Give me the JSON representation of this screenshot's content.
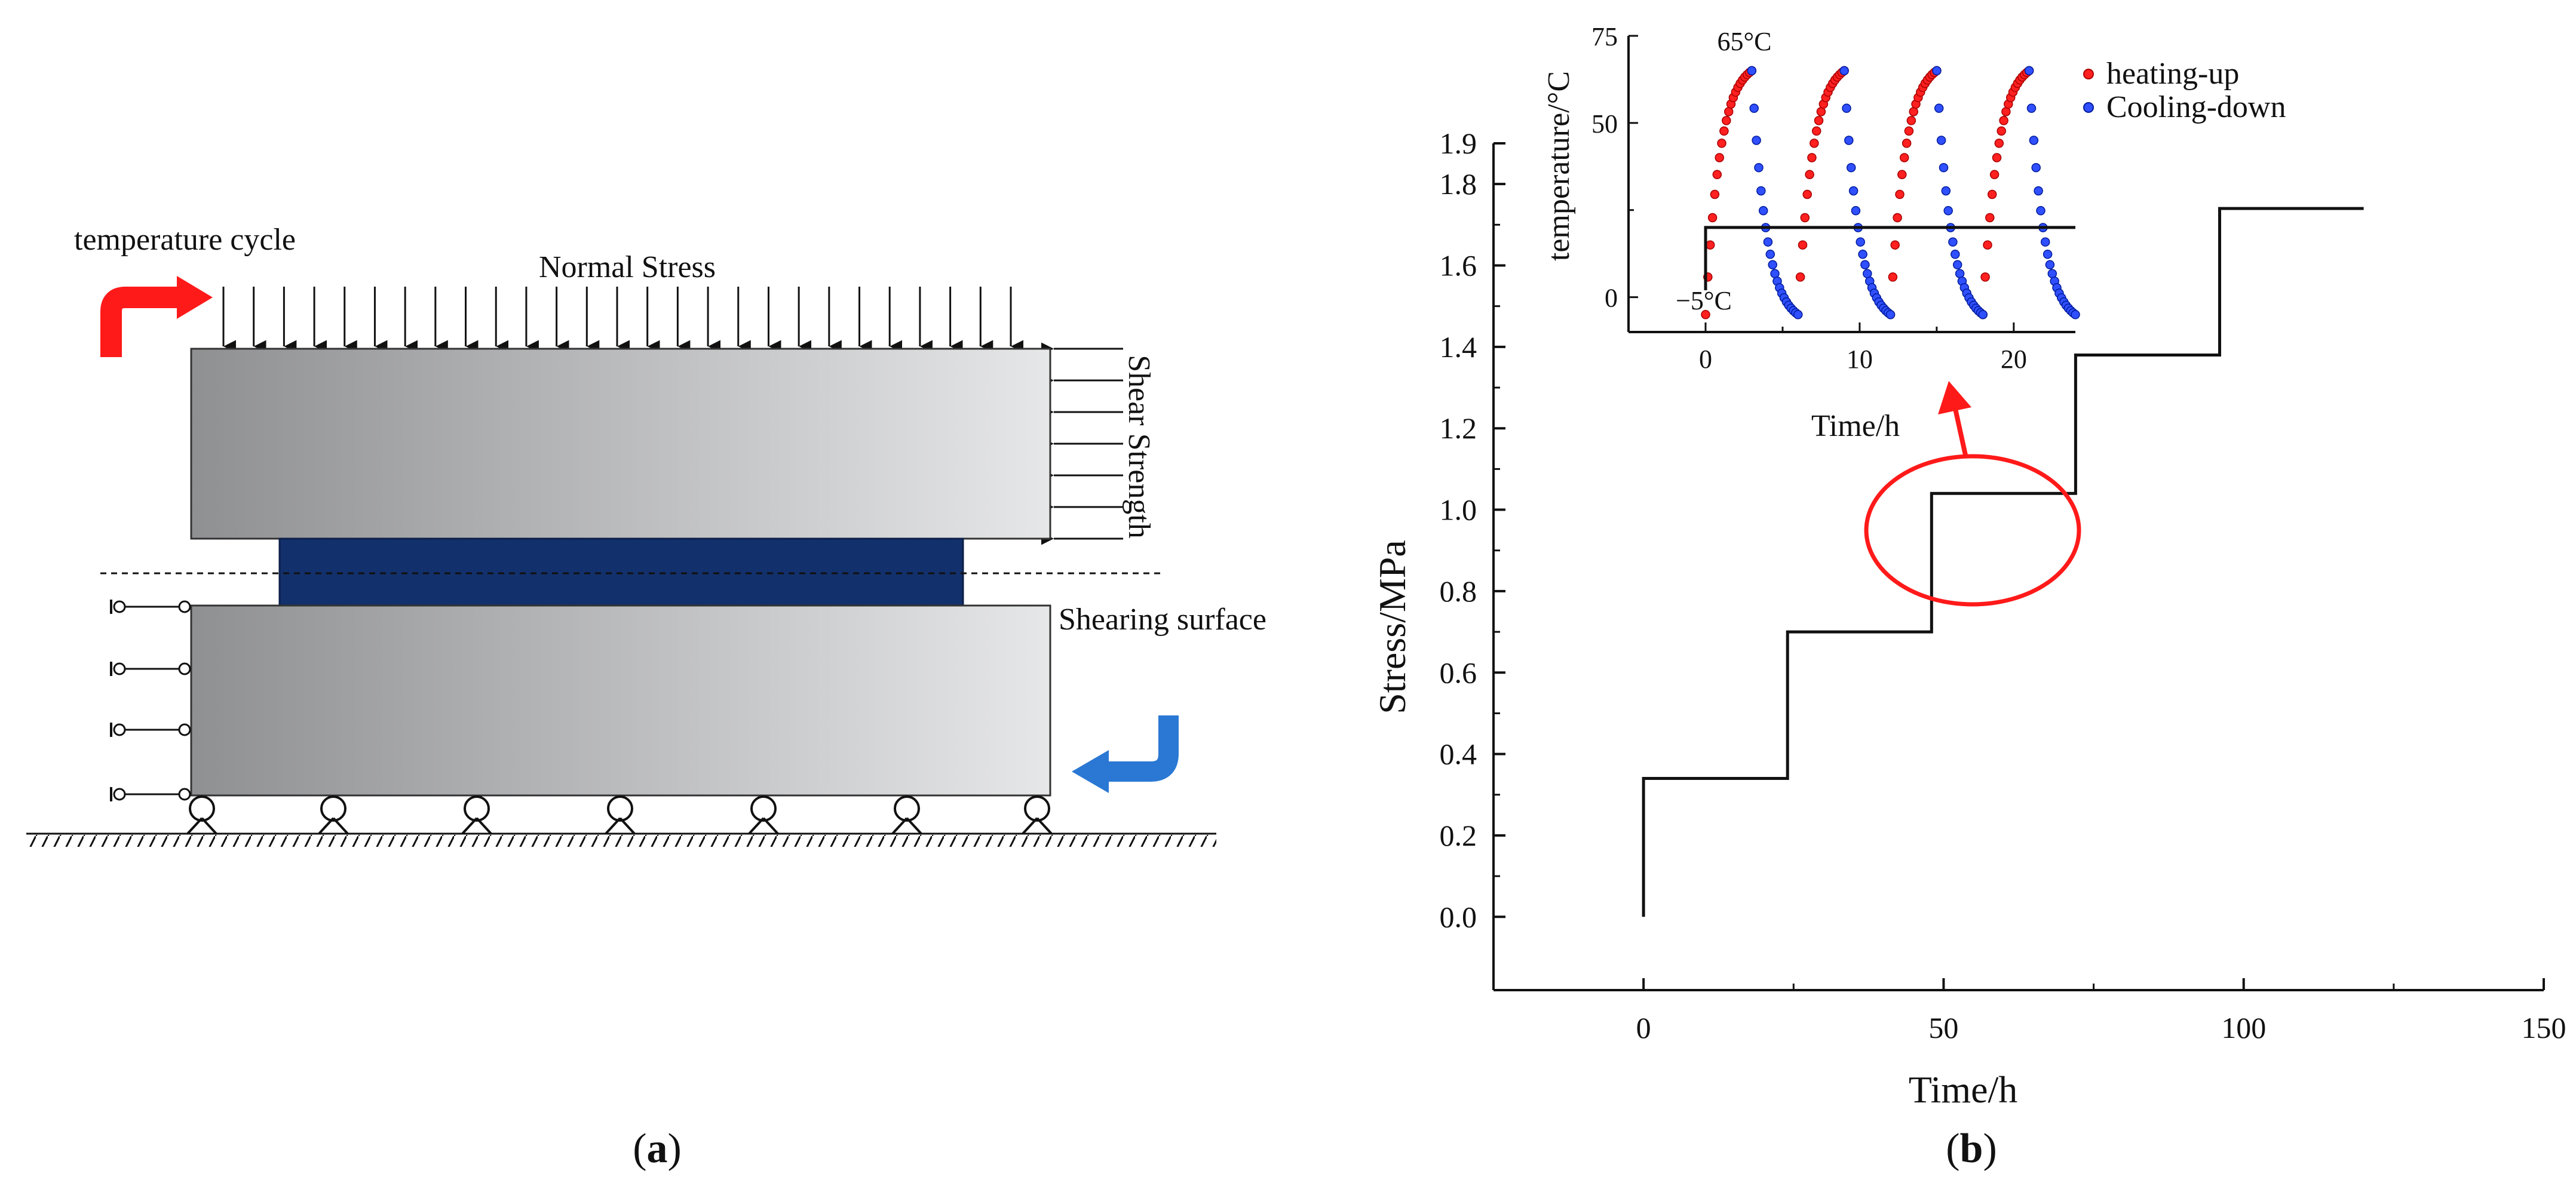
{
  "colors": {
    "block_light": "#e6e7e8",
    "block_dark": "#8f9092",
    "specimen": "#12306b",
    "red_arrow": "#ff1a1a",
    "blue_arrow": "#2a78d4",
    "heating_series": "#ff2020",
    "cooling_series": "#1e3cff",
    "highlight_ellipse": "#ff1a1a"
  },
  "panel_a": {
    "label_open": "(",
    "label_letter": "a",
    "label_close": ")",
    "temperature_cycle": "temperature cycle",
    "normal_stress": "Normal Stress",
    "shear_strength": "Shear Strength",
    "shearing_surface": "Shearing surface",
    "icons": [
      "curved-arrow-right-icon",
      "curved-arrow-left-icon",
      "roller-support-icon",
      "pin-support-icon",
      "ground-hatch-icon"
    ]
  },
  "panel_b": {
    "label_open": "(",
    "label_letter": "b",
    "label_close": ")",
    "main_title": "",
    "inset_title": ""
  },
  "chart_data": [
    {
      "type": "line",
      "name": "main",
      "xlabel": "Time/h",
      "ylabel": "Stress/MPa",
      "xlim": [
        -25,
        150
      ],
      "ylim": [
        -0.18,
        1.9
      ],
      "xticks": [
        0,
        50,
        100,
        150
      ],
      "yticks": [
        0.0,
        0.2,
        0.4,
        0.6,
        0.8,
        1.0,
        1.2,
        1.4,
        1.6,
        1.8,
        1.9
      ],
      "series": [
        {
          "x": [
            0,
            0,
            24,
            24,
            48,
            48,
            72,
            72,
            96,
            96,
            120
          ],
          "y": [
            0.0,
            0.34,
            0.34,
            0.7,
            0.7,
            1.04,
            1.04,
            1.38,
            1.38,
            1.74,
            1.74
          ]
        }
      ],
      "grid": false,
      "annotation": "ellipse highlighting the step near t = 48–72 h with an arrow pointing to the inset"
    },
    {
      "type": "scatter",
      "name": "inset",
      "xlabel": "Time/h",
      "ylabel": "temperature/°C",
      "xlim": [
        -5,
        24
      ],
      "ylim": [
        -10,
        75
      ],
      "xticks": [
        0,
        10,
        20
      ],
      "yticks": [
        0,
        50,
        75
      ],
      "cycle_period_h": 6,
      "t_max": 65,
      "t_min": -5,
      "annotations": [
        "65°C",
        "−5°C"
      ],
      "series": [
        {
          "name": "heating-up",
          "description": "rise from about -5 to 65 over ~3 h per cycle"
        },
        {
          "name": "Cooling-down",
          "description": "fall from 65 to about -5 over ~3 h per cycle"
        },
        {
          "x": [
            0,
            0,
            24
          ],
          "y": [
            2,
            20,
            20
          ],
          "style": "line"
        }
      ],
      "legend": "top-right"
    }
  ]
}
